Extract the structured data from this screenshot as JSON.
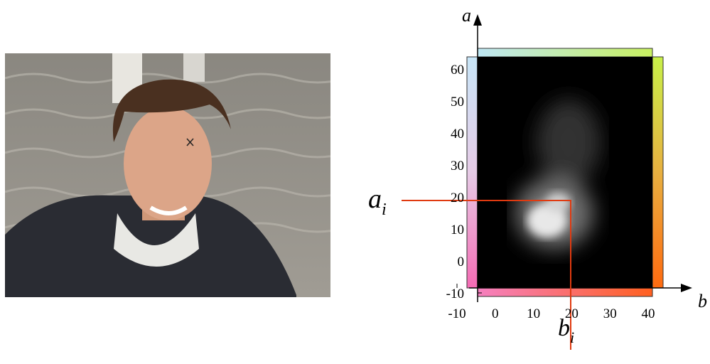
{
  "plot": {
    "y_axis_label": "a",
    "x_axis_label": "b",
    "yticks": [
      -10,
      0,
      10,
      20,
      30,
      40,
      50,
      60
    ],
    "xticks": [
      -10,
      0,
      10,
      20,
      30,
      40
    ],
    "a_marker": {
      "base": "a",
      "sub": "i"
    },
    "b_marker": {
      "base": "b",
      "sub": "i"
    }
  }
}
